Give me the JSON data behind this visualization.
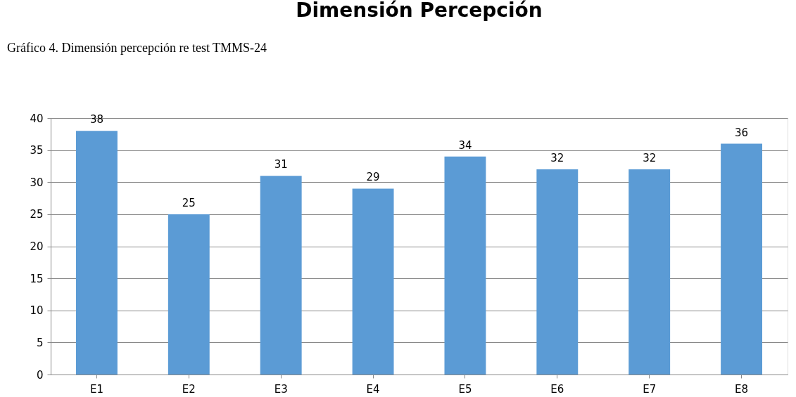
{
  "chart_data": {
    "type": "bar",
    "title": "Dimensión Percepción",
    "annotations": [
      "Gráfico 4. Dimensión percepción re test TMMS-24"
    ],
    "categories": [
      "E1",
      "E2",
      "E3",
      "E4",
      "E5",
      "E6",
      "E7",
      "E8"
    ],
    "values": [
      38,
      25,
      31,
      29,
      34,
      32,
      32,
      36
    ],
    "color": "#5b9bd5",
    "ylim": [
      0,
      40
    ],
    "yticks": [
      0,
      5,
      10,
      15,
      20,
      25,
      30,
      35,
      40
    ],
    "grid": "y",
    "data_labels": true
  }
}
